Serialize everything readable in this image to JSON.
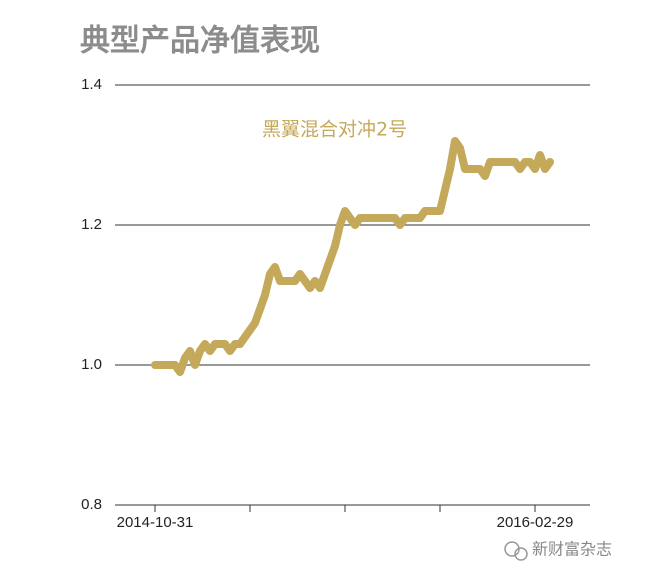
{
  "chart_data": {
    "type": "line",
    "title": "典型产品净值表现",
    "watermark": "新财富杂志",
    "categories": [
      "2014-10-31",
      null,
      null,
      null,
      null,
      null,
      null,
      null,
      null,
      null,
      null,
      null,
      null,
      null,
      null,
      null,
      null,
      null,
      null,
      null,
      null,
      null,
      null,
      null,
      null,
      null,
      null,
      null,
      null,
      null,
      null,
      null,
      null,
      null,
      null,
      null,
      null,
      null,
      null,
      null,
      null,
      null,
      null,
      null,
      null,
      null,
      null,
      null,
      null,
      null,
      null,
      null,
      null,
      null,
      null,
      null,
      null,
      null,
      null,
      null,
      null,
      null,
      null,
      null,
      null,
      null,
      null,
      null,
      null,
      null,
      null,
      null,
      null,
      null,
      null,
      null,
      "2016-02-29",
      null,
      null,
      null
    ],
    "series": [
      {
        "name": "黑翼混合对冲2号",
        "color": "#c4a95a",
        "values": [
          1.0,
          1.0,
          1.0,
          1.0,
          1.0,
          0.99,
          1.01,
          1.02,
          1.0,
          1.02,
          1.03,
          1.02,
          1.03,
          1.03,
          1.03,
          1.02,
          1.03,
          1.03,
          1.04,
          1.05,
          1.06,
          1.08,
          1.1,
          1.13,
          1.14,
          1.12,
          1.12,
          1.12,
          1.12,
          1.13,
          1.12,
          1.11,
          1.12,
          1.11,
          1.13,
          1.15,
          1.17,
          1.2,
          1.22,
          1.21,
          1.2,
          1.21,
          1.21,
          1.21,
          1.21,
          1.21,
          1.21,
          1.21,
          1.21,
          1.2,
          1.21,
          1.21,
          1.21,
          1.21,
          1.22,
          1.22,
          1.22,
          1.22,
          1.25,
          1.28,
          1.32,
          1.31,
          1.28,
          1.28,
          1.28,
          1.28,
          1.27,
          1.29,
          1.29,
          1.29,
          1.29,
          1.29,
          1.29,
          1.28,
          1.29,
          1.29,
          1.28,
          1.3,
          1.28,
          1.29
        ]
      }
    ],
    "ylim": [
      0.8,
      1.4
    ],
    "yticks": [
      {
        "value": 0.8,
        "label": "0.8"
      },
      {
        "value": 1,
        "label": "1.0"
      },
      1.2,
      1.4
    ],
    "grid": true
  }
}
